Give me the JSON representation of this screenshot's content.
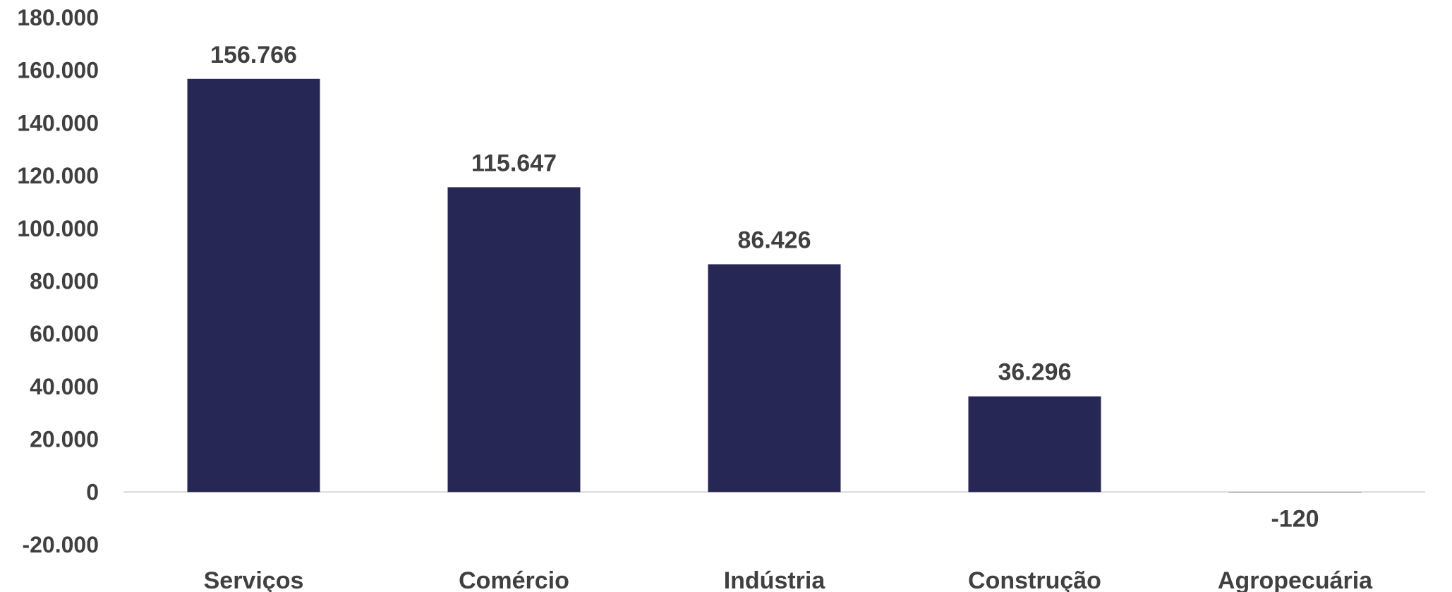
{
  "chart_data": {
    "type": "bar",
    "categories": [
      "Serviços",
      "Comércio",
      "Indústria",
      "Construção",
      "Agropecuária"
    ],
    "values": [
      156766,
      115647,
      86426,
      36296,
      -120
    ],
    "value_labels": [
      "156.766",
      "115.647",
      "86.426",
      "36.296",
      "-120"
    ],
    "ylim": [
      -20000,
      180000
    ],
    "yticks": [
      180000,
      160000,
      140000,
      120000,
      100000,
      80000,
      60000,
      40000,
      20000,
      0,
      -20000
    ],
    "ytick_labels": [
      "180.000",
      "160.000",
      "140.000",
      "120.000",
      "100.000",
      "80.000",
      "60.000",
      "40.000",
      "20.000",
      "0",
      "-20.000"
    ],
    "grid": false,
    "legend": "none",
    "title": "",
    "xlabel": "",
    "ylabel": "",
    "bar_color": "#262754",
    "axis_color": "#d9d9d9",
    "text_color": "#404040"
  }
}
